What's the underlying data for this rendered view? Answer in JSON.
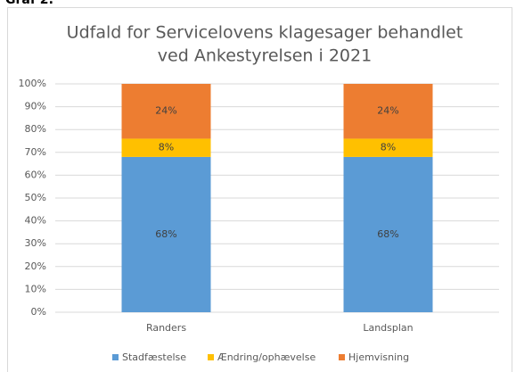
{
  "caption": "Graf 2:",
  "chart_data": {
    "type": "stacked-bar",
    "title": [
      "Udfald for Servicelovens klagesager behandlet",
      "ved Ankestyrelsen i 2021"
    ],
    "categories": [
      "Randers",
      "Landsplan"
    ],
    "series": [
      {
        "name": "Stadfæstelse",
        "color": "#5b9bd5",
        "values": [
          68,
          68
        ],
        "value_labels": [
          "68%",
          "68%"
        ]
      },
      {
        "name": "Ændring/ophævelse",
        "color": "#ffc000",
        "values": [
          8,
          8
        ],
        "value_labels": [
          "8%",
          "8%"
        ]
      },
      {
        "name": "Hjemvisning",
        "color": "#ed7d31",
        "values": [
          24,
          24
        ],
        "value_labels": [
          "24%",
          "24%"
        ]
      }
    ],
    "ylim": [
      0,
      100
    ],
    "yticks": [
      {
        "value": 0,
        "label": "0%"
      },
      {
        "value": 10,
        "label": "10%"
      },
      {
        "value": 20,
        "label": "20%"
      },
      {
        "value": 30,
        "label": "30%"
      },
      {
        "value": 40,
        "label": "40%"
      },
      {
        "value": 50,
        "label": "50%"
      },
      {
        "value": 60,
        "label": "60%"
      },
      {
        "value": 70,
        "label": "70%"
      },
      {
        "value": 80,
        "label": "80%"
      },
      {
        "value": 90,
        "label": "90%"
      },
      {
        "value": 100,
        "label": "100%"
      }
    ],
    "grid": true,
    "legend": "bottom"
  }
}
